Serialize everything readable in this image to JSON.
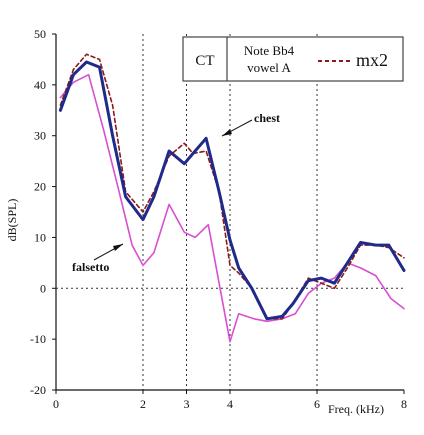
{
  "chart_data": {
    "type": "line",
    "title": "",
    "xlabel": "Freq. (kHz)",
    "ylabel": "dB(SPL)",
    "xlim": [
      0,
      8
    ],
    "ylim": [
      -20,
      50
    ],
    "x_ticks": [
      "0",
      "2",
      "3",
      "4",
      "6",
      "8"
    ],
    "x_tick_values": [
      0,
      2,
      3,
      4,
      6,
      8
    ],
    "y_ticks": [
      "50",
      "40",
      "30",
      "20",
      "10",
      "0",
      "-10",
      "-20"
    ],
    "y_tick_values": [
      50,
      40,
      30,
      20,
      10,
      0,
      -10,
      -20
    ],
    "vertical_dotted_lines_at": [
      2,
      3,
      4,
      6
    ],
    "grid": false,
    "legend": {
      "placement": "top-right",
      "singer": "CT",
      "note_line1": "Note Bb4",
      "note_line2": "vowel A",
      "entry_label": "mx2",
      "entry_color": "#8b1a1a"
    },
    "annotations": [
      {
        "text": "chest",
        "target": [
          3.75,
          29.5
        ]
      },
      {
        "text": "falsetto",
        "target": [
          1.75,
          8.5
        ]
      }
    ],
    "series": [
      {
        "key": "chest",
        "color": "#1f2a8a",
        "style": "solid-thick",
        "x": [
          0.1,
          0.4,
          0.7,
          1.0,
          1.3,
          1.6,
          2.0,
          2.25,
          2.6,
          2.95,
          3.15,
          3.45,
          3.75,
          4.0,
          4.2,
          4.5,
          4.85,
          5.2,
          5.45,
          5.8,
          6.1,
          6.4,
          6.7,
          7.0,
          7.35,
          7.65,
          8.0
        ],
        "y": [
          35,
          42,
          44.5,
          43.5,
          30,
          18,
          13.5,
          18,
          27,
          24.5,
          26.5,
          29.5,
          19,
          9.5,
          4,
          0,
          -6,
          -5.5,
          -3,
          1.5,
          2,
          1,
          5,
          9,
          8.5,
          8.5,
          3.5
        ]
      },
      {
        "key": "mx2",
        "color": "#8b1a1a",
        "style": "dashed",
        "x": [
          0.1,
          0.4,
          0.7,
          1.0,
          1.3,
          1.6,
          2.0,
          2.25,
          2.6,
          2.95,
          3.15,
          3.45,
          3.75,
          4.0,
          4.2,
          4.5,
          4.85,
          5.2,
          5.45,
          5.8,
          6.1,
          6.4,
          6.7,
          7.0,
          7.35,
          7.65,
          8.0
        ],
        "y": [
          36,
          43,
          46,
          45,
          36,
          19,
          15,
          19,
          26,
          28.5,
          26.5,
          27,
          19,
          4.5,
          3,
          0,
          -6,
          -6,
          -3,
          2,
          1,
          0,
          4,
          8.5,
          8.5,
          8,
          6
        ]
      },
      {
        "key": "falsetto",
        "color": "#d94fd0",
        "style": "solid",
        "x": [
          0.1,
          0.4,
          0.75,
          1.1,
          1.45,
          1.75,
          2.0,
          2.25,
          2.6,
          2.95,
          3.2,
          3.5,
          3.75,
          4.0,
          4.2,
          4.55,
          4.85,
          5.2,
          5.5,
          5.8,
          6.1,
          6.4,
          6.7,
          7.0,
          7.35,
          7.7,
          8.0
        ],
        "y": [
          37.5,
          40.5,
          42,
          31,
          19,
          8.5,
          4.5,
          7,
          16.5,
          11,
          10,
          12.5,
          1,
          -10.5,
          -5,
          -6,
          -6.5,
          -6,
          -5,
          -1,
          1,
          2,
          5,
          4,
          2.5,
          -2,
          -4
        ]
      }
    ]
  }
}
